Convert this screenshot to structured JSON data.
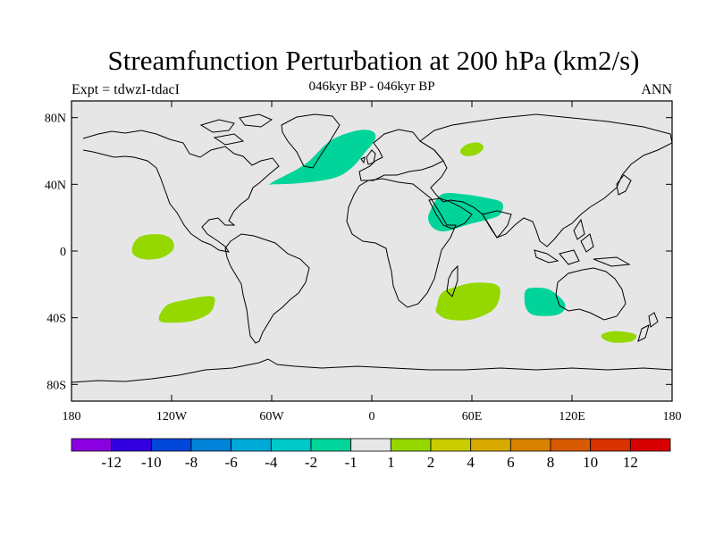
{
  "title": "Streamfunction Perturbation at 200 hPa (km2/s)",
  "subtitle": "046kyr BP - 046kyr BP",
  "left_label": "Expt = tdwzI-tdacI",
  "right_label": "ANN",
  "map": {
    "background": "#e6e6e6",
    "lat_ticks": [
      {
        "value": 80,
        "label": "80N"
      },
      {
        "value": 40,
        "label": "40N"
      },
      {
        "value": 0,
        "label": "0"
      },
      {
        "value": -40,
        "label": "40S"
      },
      {
        "value": -80,
        "label": "80S"
      }
    ],
    "lon_ticks": [
      {
        "value": -180,
        "label": "180"
      },
      {
        "value": -120,
        "label": "120W"
      },
      {
        "value": -60,
        "label": "60W"
      },
      {
        "value": 0,
        "label": "0"
      },
      {
        "value": 60,
        "label": "60E"
      },
      {
        "value": 120,
        "label": "120E"
      },
      {
        "value": 180,
        "label": "180"
      }
    ],
    "anomalies": [
      {
        "name": "north-atlantic-negative",
        "level": "-2 to -1",
        "color": "#00d49a",
        "points": [
          [
            -60,
            41
          ],
          [
            -40,
            52
          ],
          [
            -25,
            66
          ],
          [
            -10,
            72
          ],
          [
            0,
            72
          ],
          [
            2,
            67
          ],
          [
            -5,
            58
          ],
          [
            -12,
            50
          ],
          [
            -22,
            44
          ],
          [
            -40,
            41
          ],
          [
            -58,
            40
          ]
        ]
      },
      {
        "name": "arabia-negative",
        "level": "-2 to -1",
        "color": "#00d49a",
        "points": [
          [
            35,
            24
          ],
          [
            42,
            34
          ],
          [
            55,
            34
          ],
          [
            68,
            32
          ],
          [
            78,
            29
          ],
          [
            77,
            22
          ],
          [
            70,
            19
          ],
          [
            58,
            16
          ],
          [
            45,
            12
          ],
          [
            38,
            13
          ],
          [
            34,
            18
          ]
        ]
      },
      {
        "name": "australia-west-negative",
        "level": "-2 to -1",
        "color": "#00d49a",
        "points": [
          [
            92,
            -24
          ],
          [
            97,
            -22
          ],
          [
            106,
            -23
          ],
          [
            114,
            -29
          ],
          [
            116,
            -34
          ],
          [
            112,
            -38
          ],
          [
            104,
            -39
          ],
          [
            96,
            -38
          ],
          [
            92,
            -33
          ]
        ]
      },
      {
        "name": "central-asia-positive",
        "level": "1 to 2",
        "color": "#94d800",
        "points": [
          [
            53,
            60
          ],
          [
            57,
            64
          ],
          [
            64,
            65
          ],
          [
            67,
            62
          ],
          [
            63,
            58
          ],
          [
            56,
            57
          ]
        ]
      },
      {
        "name": "east-pacific-positive",
        "level": "1 to 2",
        "color": "#94d800",
        "points": [
          [
            -143,
            4
          ],
          [
            -138,
            9
          ],
          [
            -127,
            10
          ],
          [
            -120,
            7
          ],
          [
            -119,
            1
          ],
          [
            -126,
            -4
          ],
          [
            -136,
            -5
          ],
          [
            -143,
            -2
          ]
        ]
      },
      {
        "name": "south-pacific-positive",
        "level": "1 to 2",
        "color": "#94d800",
        "points": [
          [
            -127,
            -38
          ],
          [
            -122,
            -32
          ],
          [
            -110,
            -29
          ],
          [
            -98,
            -27
          ],
          [
            -94,
            -29
          ],
          [
            -97,
            -37
          ],
          [
            -108,
            -42
          ],
          [
            -121,
            -43
          ],
          [
            -127,
            -42
          ]
        ]
      },
      {
        "name": "south-indian-positive",
        "level": "1 to 2",
        "color": "#94d800",
        "points": [
          [
            39,
            -33
          ],
          [
            42,
            -25
          ],
          [
            52,
            -21
          ],
          [
            62,
            -19
          ],
          [
            74,
            -20
          ],
          [
            77,
            -25
          ],
          [
            73,
            -35
          ],
          [
            60,
            -41
          ],
          [
            46,
            -41
          ],
          [
            39,
            -37
          ]
        ]
      },
      {
        "name": "southern-ocean-positive",
        "level": "1 to 2",
        "color": "#94d800",
        "points": [
          [
            138,
            -50
          ],
          [
            146,
            -48
          ],
          [
            158,
            -50
          ],
          [
            156,
            -54
          ],
          [
            146,
            -55
          ],
          [
            139,
            -53
          ]
        ]
      }
    ]
  },
  "colorbar": {
    "colors": [
      "#8a00e0",
      "#3200e0",
      "#0046d8",
      "#0082d8",
      "#00aad8",
      "#00c8c8",
      "#00d49a",
      "#e6e6e6",
      "#94d800",
      "#c8cc00",
      "#d8aa00",
      "#d88200",
      "#d85a00",
      "#d83200",
      "#d80000"
    ],
    "labels": [
      "-12",
      "-10",
      "-8",
      "-6",
      "-4",
      "-2",
      "-1",
      "1",
      "2",
      "4",
      "6",
      "8",
      "10",
      "12"
    ]
  }
}
